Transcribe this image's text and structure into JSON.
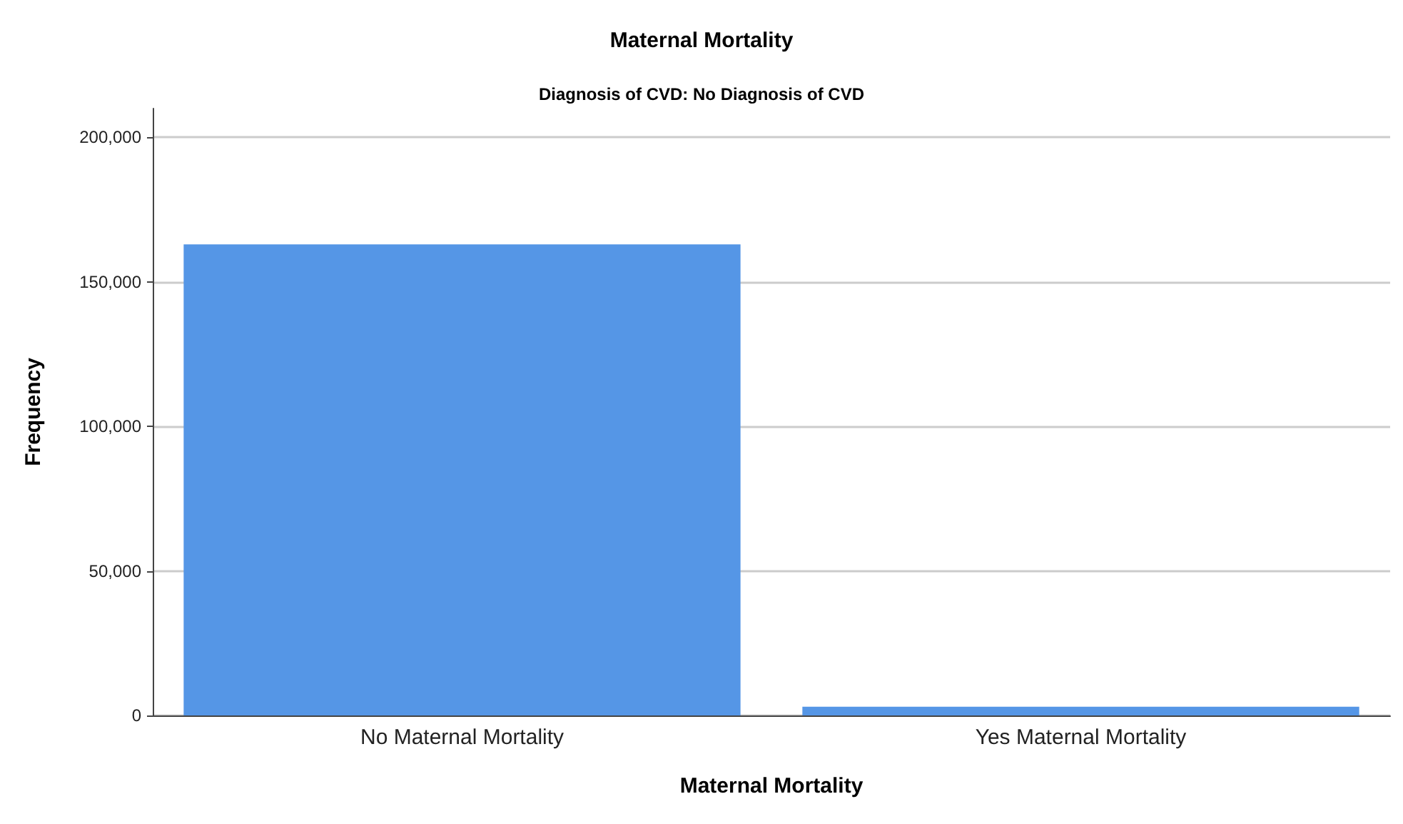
{
  "chart_data": {
    "type": "bar",
    "title": "Maternal Mortality",
    "subtitle": "Diagnosis of CVD: No Diagnosis of CVD",
    "xlabel": "Maternal Mortality",
    "ylabel": "Frequency",
    "categories": [
      "No Maternal Mortality",
      "Yes Maternal Mortality"
    ],
    "values": [
      163000,
      3000
    ],
    "color": "#5596e6",
    "ylim": [
      0,
      210000
    ],
    "yticks": [
      {
        "value": 0,
        "label": "0"
      },
      {
        "value": 50000,
        "label": "50,000"
      },
      {
        "value": 100000,
        "label": "100,000"
      },
      {
        "value": 150000,
        "label": "150,000"
      },
      {
        "value": 200000,
        "label": "200,000"
      }
    ],
    "grid": "y"
  }
}
